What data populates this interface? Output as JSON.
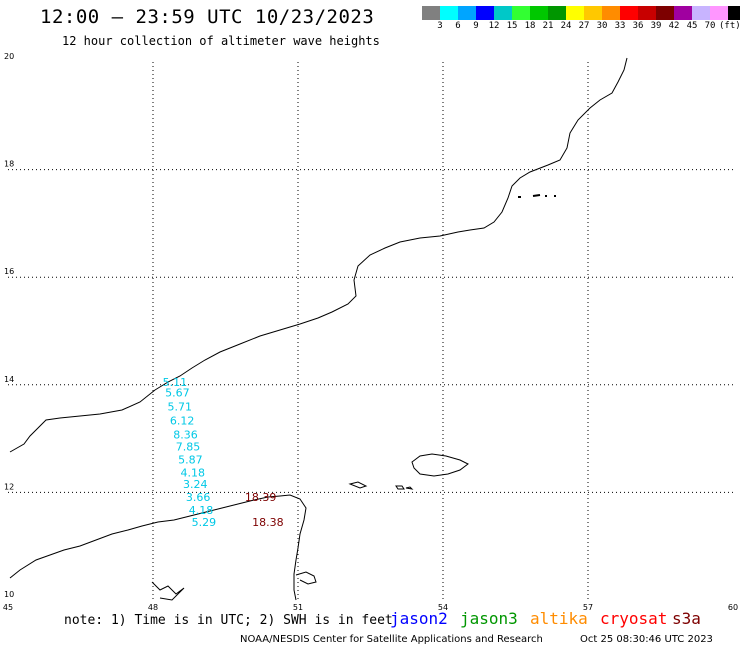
{
  "title": "12:00 – 23:59 UTC 10/23/2023",
  "subtitle": "12 hour collection of altimeter wave heights",
  "colorbar": {
    "colors": [
      "#808080",
      "#00ffff",
      "#00a5ff",
      "#0000ff",
      "#00c8c8",
      "#32ff32",
      "#00c800",
      "#009600",
      "#ffff00",
      "#ffc800",
      "#ff8c00",
      "#ff0000",
      "#c80000",
      "#7d0000",
      "#a000a0",
      "#c8b4ff",
      "#ff96ff",
      "#000000"
    ],
    "labels": [
      "3",
      "6",
      "9",
      "12",
      "15",
      "18",
      "21",
      "24",
      "27",
      "30",
      "33",
      "36",
      "39",
      "42",
      "45",
      "70",
      "(ft)"
    ]
  },
  "axes": {
    "lon_ticks": [
      "45",
      "48",
      "51",
      "54",
      "57",
      "60"
    ],
    "lat_ticks": [
      "20",
      "18",
      "16",
      "14",
      "12",
      "10"
    ]
  },
  "wave_labels": [
    {
      "text": "5.11",
      "color": "#00c8e6",
      "lon": 48.2,
      "lat": 13.98
    },
    {
      "text": "5.67",
      "color": "#00c8e6",
      "lon": 48.25,
      "lat": 13.78
    },
    {
      "text": "5.71",
      "color": "#00c8e6",
      "lon": 48.3,
      "lat": 13.52
    },
    {
      "text": "6.12",
      "color": "#00c8e6",
      "lon": 48.35,
      "lat": 13.26
    },
    {
      "text": "8.36",
      "color": "#00c8e6",
      "lon": 48.42,
      "lat": 13.0
    },
    {
      "text": "7.85",
      "color": "#00c8e6",
      "lon": 48.47,
      "lat": 12.78
    },
    {
      "text": "5.87",
      "color": "#00c8e6",
      "lon": 48.52,
      "lat": 12.54
    },
    {
      "text": "4.18",
      "color": "#00c8e6",
      "lon": 48.57,
      "lat": 12.3
    },
    {
      "text": "3.24",
      "color": "#00c8e6",
      "lon": 48.62,
      "lat": 12.08
    },
    {
      "text": "3.66",
      "color": "#00c8e6",
      "lon": 48.68,
      "lat": 11.84
    },
    {
      "text": "4.18",
      "color": "#00c8e6",
      "lon": 48.74,
      "lat": 11.6
    },
    {
      "text": "5.29",
      "color": "#00c8e6",
      "lon": 48.8,
      "lat": 11.38
    },
    {
      "text": "18.39",
      "color": "#7d0000",
      "lon": 49.9,
      "lat": 11.84
    },
    {
      "text": "18.38",
      "color": "#7d0000",
      "lon": 50.05,
      "lat": 11.38
    }
  ],
  "footer": {
    "note": "note: 1) Time is in UTC; 2) SWH is in feet",
    "satellites": [
      {
        "name": "jason2",
        "color": "#0000ff"
      },
      {
        "name": "jason3",
        "color": "#009600"
      },
      {
        "name": "altika",
        "color": "#ff8c00"
      },
      {
        "name": "cryosat",
        "color": "#ff0000"
      },
      {
        "name": "s3a",
        "color": "#7d0000"
      }
    ],
    "credit": "NOAA/NESDIS Center for Satellite Applications and Research",
    "timestamp": "Oct 25 08:30:46 UTC 2023"
  }
}
